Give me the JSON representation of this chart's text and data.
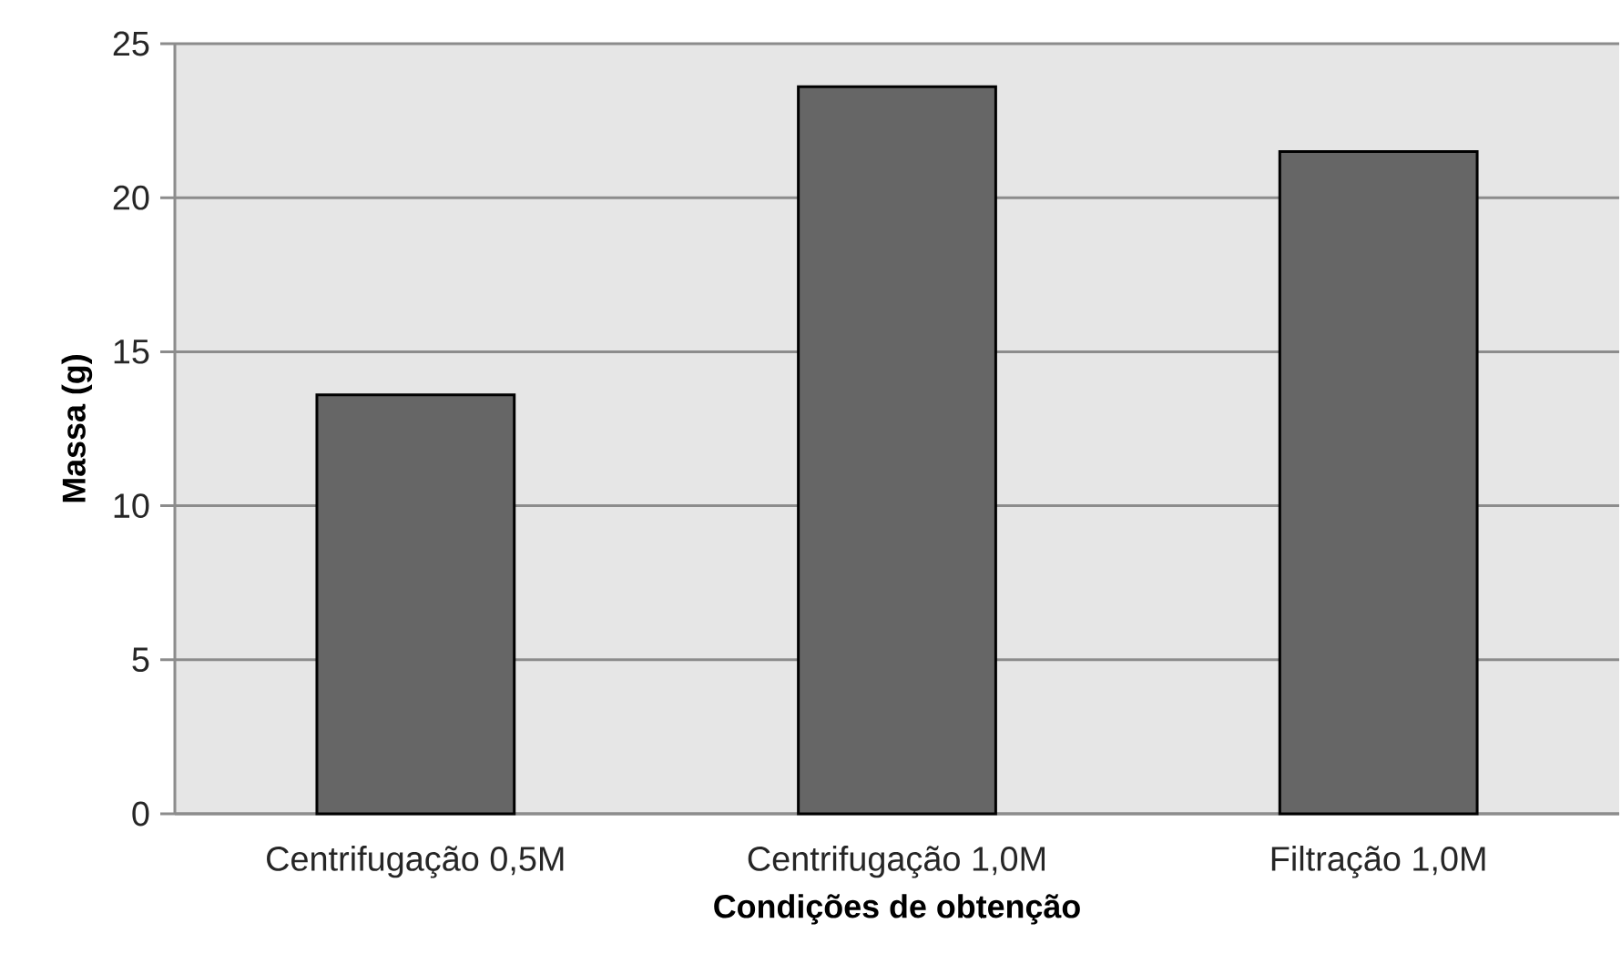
{
  "chart_data": {
    "type": "bar",
    "xlabel": "Condições de obtenção",
    "ylabel": "Massa (g)",
    "categories": [
      "Centrifugação 0,5M",
      "Centrifugação 1,0M",
      "Filtração 1,0M"
    ],
    "values": [
      13.6,
      23.6,
      21.5
    ],
    "color": "#666666",
    "ylim": [
      0,
      25
    ],
    "yticks": [
      0,
      5,
      10,
      15,
      20,
      25
    ],
    "grid": "y"
  }
}
